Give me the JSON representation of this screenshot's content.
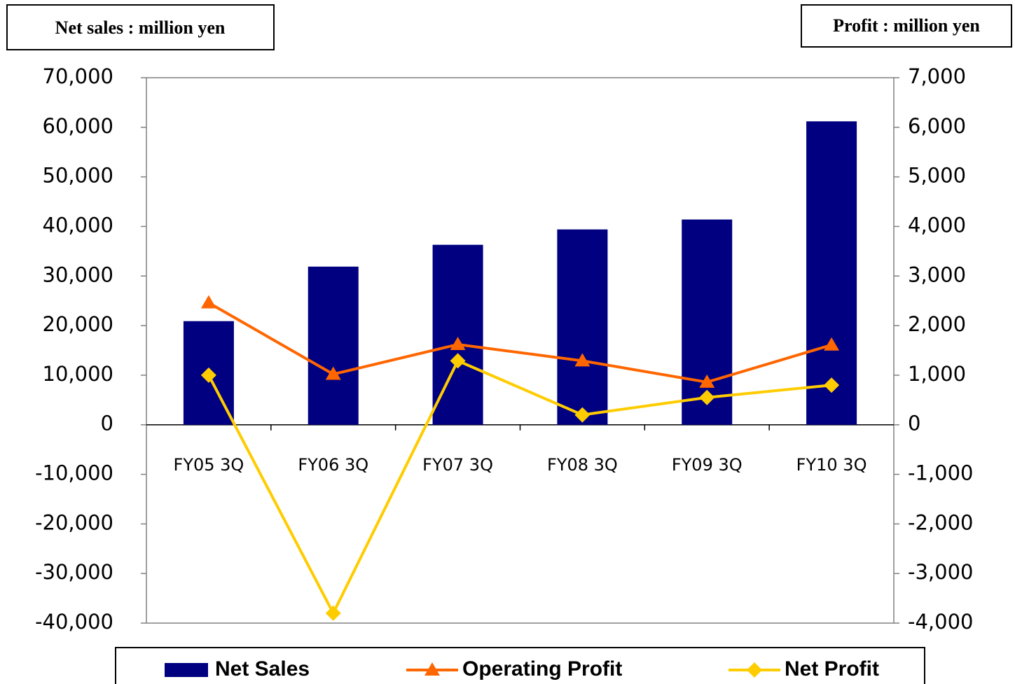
{
  "chart_data": {
    "type": "bar",
    "y_axis_label": "Net sales : million yen",
    "y2_axis_label": "Profit : million yen",
    "categories": [
      "FY05 3Q",
      "FY06 3Q",
      "FY07 3Q",
      "FY08 3Q",
      "FY09 3Q",
      "FY10 3Q"
    ],
    "series": [
      {
        "name": "Net Sales",
        "type": "bar",
        "color": "#000080",
        "values": [
          20900,
          31900,
          36300,
          39400,
          41400,
          61200
        ]
      },
      {
        "name": "Operating Profit",
        "type": "line",
        "marker": "triangle",
        "axis": "y2",
        "color": "#ff6600",
        "values": [
          2460,
          1020,
          1620,
          1290,
          860,
          1610
        ]
      },
      {
        "name": "Net Profit",
        "type": "line",
        "marker": "diamond",
        "axis": "y2",
        "color": "#ffcc00",
        "values": [
          1000,
          -3800,
          1290,
          200,
          550,
          800
        ]
      }
    ],
    "ylim": [
      -40000,
      70000
    ],
    "yticks": [
      {
        "value": 70000,
        "label": "70,000"
      },
      {
        "value": 60000,
        "label": "60,000"
      },
      {
        "value": 50000,
        "label": "50,000"
      },
      {
        "value": 40000,
        "label": "40,000"
      },
      {
        "value": 30000,
        "label": "30,000"
      },
      {
        "value": 20000,
        "label": "20,000"
      },
      {
        "value": 10000,
        "label": "10,000"
      },
      0,
      {
        "value": -10000,
        "label": "-10,000"
      },
      {
        "value": -20000,
        "label": "-20,000"
      },
      {
        "value": -30000,
        "label": "-30,000"
      },
      {
        "value": -40000,
        "label": "-40,000"
      }
    ],
    "y2lim": [
      -4000,
      7000
    ],
    "y2ticks": [
      {
        "value": 7000,
        "label": "7,000"
      },
      {
        "value": 6000,
        "label": "6,000"
      },
      {
        "value": 5000,
        "label": "5,000"
      },
      {
        "value": 4000,
        "label": "4,000"
      },
      {
        "value": 3000,
        "label": "3,000"
      },
      {
        "value": 2000,
        "label": "2,000"
      },
      {
        "value": 1000,
        "label": "1,000"
      },
      0,
      {
        "value": -1000,
        "label": "-1,000"
      },
      {
        "value": -2000,
        "label": "-2,000"
      },
      {
        "value": -3000,
        "label": "-3,000"
      },
      {
        "value": -4000,
        "label": "-4,000"
      }
    ],
    "legend": "bottom"
  }
}
